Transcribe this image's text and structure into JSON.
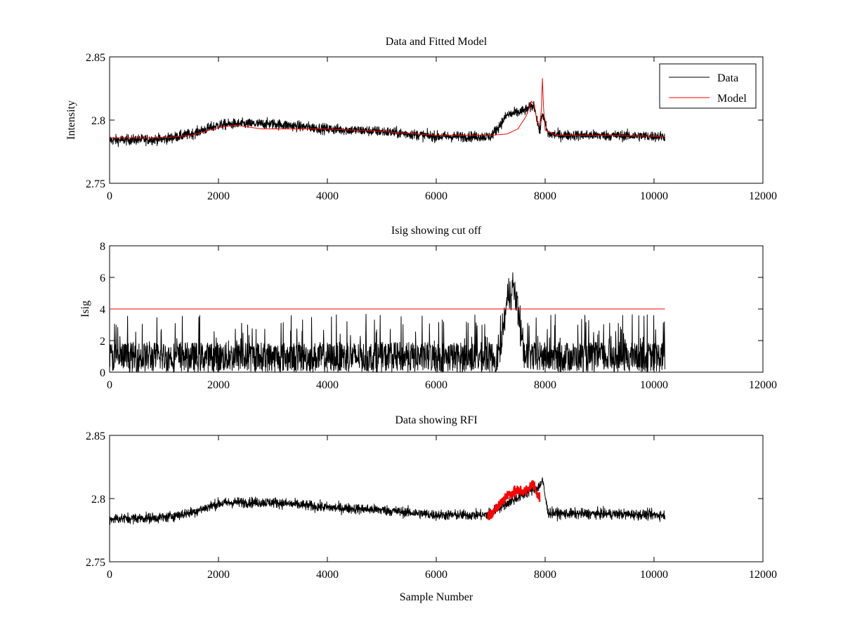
{
  "chart_data": [
    {
      "type": "line",
      "title": "Data and Fitted Model",
      "xlabel": "",
      "ylabel": "Intensity",
      "xlim": [
        0,
        12000
      ],
      "ylim": [
        2.75,
        2.85
      ],
      "xticks": [
        0,
        2000,
        4000,
        6000,
        8000,
        10000,
        12000
      ],
      "xtick_labels": [
        "0",
        "2000",
        "4000",
        "6000",
        "8000",
        "10000",
        "12000"
      ],
      "yticks": [
        2.75,
        2.8,
        2.85
      ],
      "ytick_labels": [
        "2.75",
        "2.8",
        "2.85"
      ],
      "legend": {
        "position": "top-right",
        "entries": [
          {
            "label": "Data",
            "color": "#000000"
          },
          {
            "label": "Model",
            "color": "#ff0000"
          }
        ]
      },
      "series": [
        {
          "name": "Data",
          "color": "#000000",
          "kind": "noisy",
          "x": [
            0,
            1000,
            1500,
            2000,
            2300,
            3000,
            4000,
            5000,
            6000,
            7000,
            7150,
            7300,
            7500,
            7650,
            7800,
            7900,
            7950,
            8050,
            8300,
            9000,
            10200
          ],
          "y": [
            2.784,
            2.785,
            2.789,
            2.796,
            2.797,
            2.797,
            2.793,
            2.791,
            2.787,
            2.787,
            2.795,
            2.804,
            2.806,
            2.808,
            2.812,
            2.79,
            2.806,
            2.789,
            2.788,
            2.788,
            2.787
          ],
          "noise": 0.004
        },
        {
          "name": "Model",
          "color": "#ff0000",
          "kind": "line",
          "x": [
            0,
            1000,
            1500,
            2000,
            2300,
            2800,
            4000,
            5000,
            6000,
            7000,
            7300,
            7500,
            7650,
            7750,
            7800,
            7850,
            7900,
            7930,
            7950,
            7970,
            8000,
            8200,
            9000,
            10200
          ],
          "y": [
            2.786,
            2.786,
            2.788,
            2.794,
            2.796,
            2.793,
            2.793,
            2.791,
            2.788,
            2.788,
            2.789,
            2.793,
            2.803,
            2.815,
            2.812,
            2.799,
            2.796,
            2.808,
            2.833,
            2.81,
            2.792,
            2.788,
            2.788,
            2.787
          ]
        }
      ]
    },
    {
      "type": "line",
      "title": "Isig showing cut off",
      "xlabel": "",
      "ylabel": "Isig",
      "xlim": [
        0,
        12000
      ],
      "ylim": [
        0,
        8
      ],
      "xticks": [
        0,
        2000,
        4000,
        6000,
        8000,
        10000,
        12000
      ],
      "xtick_labels": [
        "0",
        "2000",
        "4000",
        "6000",
        "8000",
        "10000",
        "12000"
      ],
      "yticks": [
        0,
        2,
        4,
        6,
        8
      ],
      "ytick_labels": [
        "0",
        "2",
        "4",
        "6",
        "8"
      ],
      "cutoff": 4,
      "series": [
        {
          "name": "Isig",
          "color": "#000000",
          "kind": "spiky",
          "x": [
            0,
            7100,
            7200,
            7300,
            7400,
            7500,
            7600,
            7700,
            10200
          ],
          "y": [
            0.9,
            0.9,
            2.0,
            4.5,
            5.5,
            4.0,
            1.5,
            0.9,
            0.9
          ],
          "spike_max": 3.7
        },
        {
          "name": "Cut off",
          "color": "#ff0000",
          "kind": "line",
          "x": [
            0,
            10200
          ],
          "y": [
            4,
            4
          ]
        }
      ]
    },
    {
      "type": "line",
      "title": "Data showing RFI",
      "xlabel": "Sample Number",
      "ylabel": "",
      "xlim": [
        0,
        12000
      ],
      "ylim": [
        2.75,
        2.85
      ],
      "xticks": [
        0,
        2000,
        4000,
        6000,
        8000,
        10000,
        12000
      ],
      "xtick_labels": [
        "0",
        "2000",
        "4000",
        "6000",
        "8000",
        "10000",
        "12000"
      ],
      "yticks": [
        2.75,
        2.8,
        2.85
      ],
      "ytick_labels": [
        "2.75",
        "2.8",
        "2.85"
      ],
      "series": [
        {
          "name": "Data",
          "color": "#000000",
          "kind": "noisy",
          "x": [
            0,
            1000,
            1500,
            2000,
            2300,
            3000,
            4000,
            5000,
            6000,
            6900,
            7900,
            7950,
            8050,
            8300,
            9000,
            10200
          ],
          "y": [
            2.784,
            2.785,
            2.789,
            2.796,
            2.797,
            2.797,
            2.793,
            2.791,
            2.787,
            2.787,
            2.81,
            2.815,
            2.789,
            2.788,
            2.788,
            2.787
          ],
          "noise": 0.004
        },
        {
          "name": "RFI",
          "color": "#ff0000",
          "kind": "noisy",
          "x": [
            6950,
            7100,
            7300,
            7500,
            7650,
            7780,
            7850,
            7900
          ],
          "y": [
            2.786,
            2.792,
            2.803,
            2.806,
            2.806,
            2.812,
            2.805,
            2.8
          ],
          "noise": 0.004
        }
      ]
    }
  ]
}
